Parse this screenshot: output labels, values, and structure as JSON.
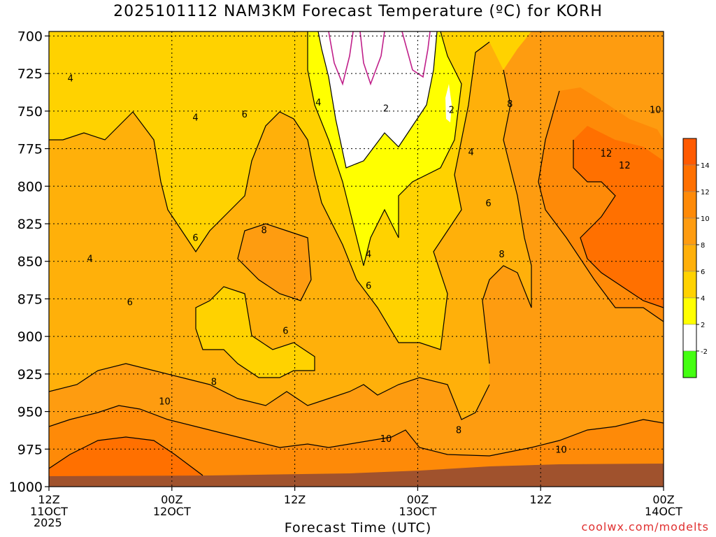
{
  "chart_data": {
    "type": "heatmap",
    "title": "2025101112 NAM3KM Forecast Temperature (ºC) for KORH",
    "xlabel": "Forecast Time (UTC)",
    "ylabel": "",
    "credit": "coolwx.com/modelts",
    "x_ticks": [
      {
        "top": "12Z",
        "bottom": "11OCT",
        "hours": 0
      },
      {
        "top": "00Z",
        "bottom": "12OCT",
        "hours": 12
      },
      {
        "top": "12Z",
        "bottom": "",
        "hours": 24
      },
      {
        "top": "00Z",
        "bottom": "13OCT",
        "hours": 36
      },
      {
        "top": "12Z",
        "bottom": "",
        "hours": 48
      },
      {
        "top": "00Z",
        "bottom": "14OCT",
        "hours": 60
      }
    ],
    "year_label": "2025",
    "xlim_hours": [
      0,
      60
    ],
    "y_ticks": [
      700,
      725,
      750,
      775,
      800,
      825,
      850,
      875,
      900,
      925,
      950,
      975,
      1000
    ],
    "ylim_hPa": [
      1000,
      697
    ],
    "grid": true,
    "colorbar": {
      "ticks": [
        "14",
        "12",
        "10",
        "8",
        "6",
        "4",
        "2",
        "-2"
      ],
      "bins": [
        {
          "range": "14-16",
          "color": "#ff5a00"
        },
        {
          "range": "12-14",
          "color": "#ff7000"
        },
        {
          "range": "10-12",
          "color": "#fe8a08"
        },
        {
          "range": "8-10",
          "color": "#fe9c10"
        },
        {
          "range": "6-8",
          "color": "#ffb00a"
        },
        {
          "range": "4-6",
          "color": "#ffd200"
        },
        {
          "range": "2-4",
          "color": "#ffff00"
        },
        {
          "range": "-2-2",
          "color": "#ffffff"
        },
        {
          "range": "-4--2",
          "color": "#44ff11"
        }
      ]
    },
    "contour_labels": [
      {
        "v": "4",
        "h": 2.1,
        "p": 728
      },
      {
        "v": "4",
        "h": 14.3,
        "p": 754
      },
      {
        "v": "6",
        "h": 19.1,
        "p": 752
      },
      {
        "v": "4",
        "h": 26.3,
        "p": 744
      },
      {
        "v": "2",
        "h": 32.9,
        "p": 748
      },
      {
        "v": "2",
        "h": 39.3,
        "p": 749
      },
      {
        "v": "4",
        "h": 41.2,
        "p": 777
      },
      {
        "v": "8",
        "h": 45.0,
        "p": 745
      },
      {
        "v": "10",
        "h": 59.2,
        "p": 749
      },
      {
        "v": "12",
        "h": 54.4,
        "p": 778
      },
      {
        "v": "12",
        "h": 56.2,
        "p": 786
      },
      {
        "v": "6",
        "h": 42.9,
        "p": 811
      },
      {
        "v": "8",
        "h": 21.0,
        "p": 829
      },
      {
        "v": "6",
        "h": 14.3,
        "p": 834
      },
      {
        "v": "4",
        "h": 4.0,
        "p": 848
      },
      {
        "v": "4",
        "h": 31.2,
        "p": 845
      },
      {
        "v": "8",
        "h": 44.2,
        "p": 845
      },
      {
        "v": "6",
        "h": 31.2,
        "p": 866
      },
      {
        "v": "6",
        "h": 7.9,
        "p": 877
      },
      {
        "v": "6",
        "h": 23.1,
        "p": 896
      },
      {
        "v": "8",
        "h": 16.1,
        "p": 930
      },
      {
        "v": "10",
        "h": 11.3,
        "p": 943
      },
      {
        "v": "8",
        "h": 40.0,
        "p": 962
      },
      {
        "v": "10",
        "h": 32.9,
        "p": 968
      },
      {
        "v": "10",
        "h": 50.0,
        "p": 975
      }
    ]
  }
}
